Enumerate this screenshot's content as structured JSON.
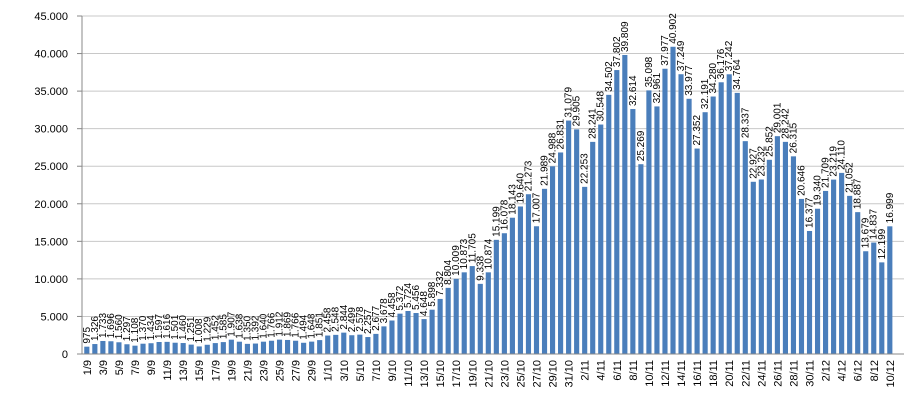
{
  "chart_data": {
    "type": "bar",
    "color": "#4a7ebb",
    "grid": true,
    "ylim": [
      0,
      45000
    ],
    "yticks": [
      0,
      {
        "value": 5000,
        "label": "5.000"
      },
      {
        "value": 10000,
        "label": "10.000"
      },
      {
        "value": 15000,
        "label": "15.000"
      },
      {
        "value": 20000,
        "label": "20.000"
      },
      {
        "value": 25000,
        "label": "25.000"
      },
      {
        "value": 30000,
        "label": "30.000"
      },
      {
        "value": 35000,
        "label": "35.000"
      },
      {
        "value": 40000,
        "label": "40.000"
      },
      {
        "value": 45000,
        "label": "45.000"
      }
    ],
    "categories": [
      "1/9",
      null,
      "3/9",
      null,
      "5/9",
      null,
      "7/9",
      null,
      "9/9",
      null,
      "11/9",
      null,
      "13/9",
      null,
      "15/9",
      null,
      "17/9",
      null,
      "19/9",
      null,
      "21/9",
      null,
      "23/9",
      null,
      "25/9",
      null,
      "27/9",
      null,
      "29/9",
      null,
      "1/10",
      null,
      "3/10",
      null,
      "5/10",
      null,
      "7/10",
      null,
      "9/10",
      null,
      "11/10",
      null,
      "13/10",
      null,
      "15/10",
      null,
      "17/10",
      null,
      "19/10",
      null,
      "21/10",
      null,
      "23/10",
      null,
      "25/10",
      null,
      "27/10",
      null,
      "29/10",
      null,
      "31/10",
      null,
      "2/11",
      null,
      "4/11",
      null,
      "6/11",
      null,
      "8/11",
      null,
      "10/11",
      null,
      "12/11",
      null,
      "14/11",
      null,
      "16/11",
      null,
      "18/11",
      null,
      "20/11",
      null,
      "22/11",
      null,
      "24/11",
      null,
      "26/11",
      null,
      "28/11",
      null,
      "30/11",
      null,
      "2/12",
      null,
      "4/12",
      null,
      "6/12",
      null,
      "8/12",
      null,
      "10/12"
    ],
    "values": [
      975,
      1326,
      1733,
      1696,
      1560,
      1297,
      1108,
      1370,
      1434,
      1597,
      1616,
      1501,
      1460,
      1251,
      1008,
      1229,
      1452,
      1585,
      1907,
      1638,
      1350,
      1392,
      1640,
      1766,
      1912,
      1869,
      1766,
      1494,
      1648,
      1851,
      2458,
      2548,
      2844,
      2499,
      2578,
      2257,
      2677,
      3678,
      4458,
      5372,
      5724,
      5456,
      4648,
      5898,
      7332,
      8804,
      10009,
      10873,
      11705,
      9338,
      10874,
      15199,
      16078,
      18143,
      19640,
      21273,
      17007,
      21989,
      24988,
      26831,
      31079,
      29905,
      22253,
      28241,
      30548,
      34502,
      37802,
      39809,
      32614,
      25269,
      35098,
      32961,
      37977,
      40902,
      37249,
      33977,
      27352,
      32191,
      34280,
      36176,
      37242,
      34764,
      28337,
      22927,
      23232,
      25852,
      29001,
      28242,
      26315,
      20646,
      16377,
      19340,
      21709,
      23219,
      24110,
      21052,
      18887,
      13679,
      14837,
      12199,
      16999
    ],
    "value_labels": [
      "975",
      "1.326",
      "1.733",
      "1.696",
      "1.560",
      "1.297",
      "1.108",
      "1.370",
      "1.434",
      "1.597",
      "1.616",
      "1.501",
      "1.460",
      "1.251",
      "1.008",
      "1.229",
      "1.452",
      "1.585",
      "1.907",
      "1.638",
      "1.350",
      "1.392",
      "1.640",
      "1.766",
      "1.912",
      "1.869",
      "1.766",
      "1.494",
      "1.648",
      "1.851",
      "2.458",
      "2.548",
      "2.844",
      "2.499",
      "2.578",
      "2.257",
      "2.677",
      "3.678",
      "4.458",
      "5.372",
      "5.724",
      "5.456",
      "4.648",
      "5.898",
      "7.332",
      "8.804",
      "10.009",
      "10.873",
      "11.705",
      "9.338",
      "10.874",
      "15.199",
      "16.078",
      "18.143",
      "19.640",
      "21.273",
      "17.007",
      "21.989",
      "24.988",
      "26.831",
      "31.079",
      "29.905",
      "22.253",
      "28.241",
      "30.548",
      "34.502",
      "37.802",
      "39.809",
      "32.614",
      "25.269",
      "35.098",
      "32.961",
      "37.977",
      "40.902",
      "37.249",
      "33.977",
      "27.352",
      "32.191",
      "34.280",
      "36.176",
      "37.242",
      "34.764",
      "28.337",
      "22.927",
      "23.232",
      "25.852",
      "29.001",
      "28.242",
      "26.315",
      "20.646",
      "16.377",
      "19.340",
      "21.709",
      "23.219",
      "24.110",
      "21.052",
      "18.887",
      "13.679",
      "14.837",
      "12.199",
      "16.999"
    ]
  }
}
